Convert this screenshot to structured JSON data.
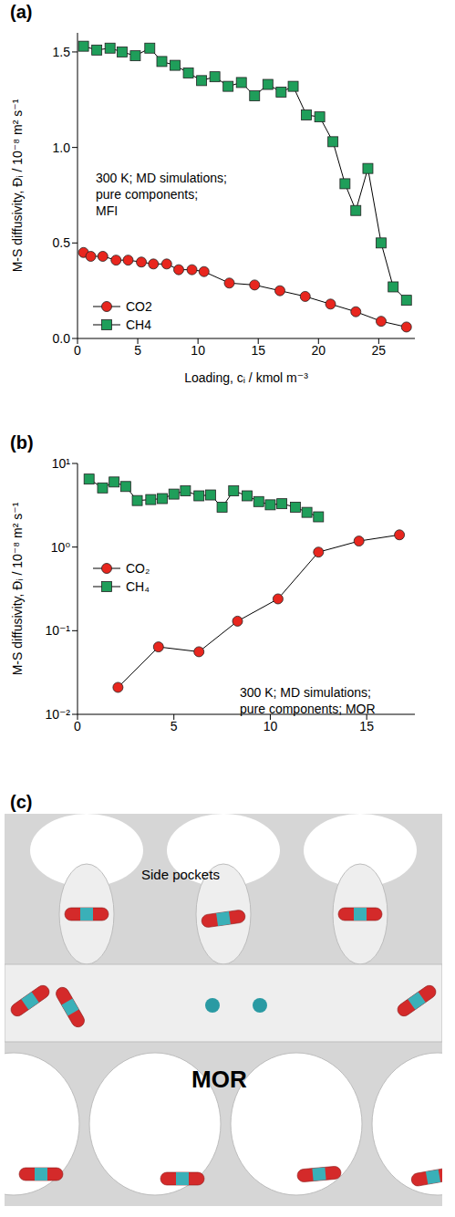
{
  "chart_data": [
    {
      "type": "line",
      "title": "(a)",
      "xlabel": "Loading, cᵢ / kmol m⁻³",
      "ylabel": "M-S diffusivity, Đᵢ / 10⁻⁸ m² s⁻¹",
      "annotations": [
        "300 K; MD simulations;",
        "pure components;",
        "MFI"
      ],
      "xlim": [
        0,
        28
      ],
      "xticks": [
        0,
        5,
        10,
        15,
        20,
        25
      ],
      "ylim": [
        0,
        1.6
      ],
      "yticks": [
        {
          "value": 0,
          "label": "0.0"
        },
        0.5,
        {
          "value": 1,
          "label": "1.0"
        },
        1.5
      ],
      "legend": "lower left",
      "grid": false,
      "series": [
        {
          "name": "CO2",
          "color": "#e8261e",
          "marker": "circle",
          "x": [
            0.5,
            1.1,
            2.1,
            3.2,
            4.2,
            5.3,
            6.3,
            7.4,
            8.4,
            9.5,
            10.5,
            12.6,
            14.7,
            16.8,
            18.9,
            21.0,
            23.1,
            25.2,
            27.3
          ],
          "values": [
            0.45,
            0.43,
            0.43,
            0.41,
            0.41,
            0.4,
            0.39,
            0.39,
            0.36,
            0.36,
            0.35,
            0.29,
            0.28,
            0.25,
            0.22,
            0.18,
            0.14,
            0.09,
            0.06
          ]
        },
        {
          "name": "CH4",
          "color": "#1f9e5a",
          "marker": "square",
          "x": [
            0.5,
            1.6,
            2.7,
            3.7,
            4.8,
            6.0,
            7.0,
            8.1,
            9.2,
            10.3,
            11.4,
            12.5,
            13.6,
            14.7,
            15.8,
            16.9,
            17.9,
            19.0,
            20.1,
            21.2,
            22.2,
            23.1,
            24.1,
            25.2,
            26.2,
            27.3
          ],
          "values": [
            1.53,
            1.51,
            1.52,
            1.5,
            1.48,
            1.52,
            1.45,
            1.43,
            1.39,
            1.35,
            1.37,
            1.32,
            1.34,
            1.27,
            1.33,
            1.29,
            1.32,
            1.17,
            1.16,
            1.03,
            0.81,
            0.67,
            0.89,
            0.5,
            0.27,
            0.2
          ]
        }
      ]
    },
    {
      "type": "line",
      "title": "(b)",
      "ylabel": "M-S diffusivity, Đᵢ / 10⁻⁸ m² s⁻¹",
      "annotations": [
        "300 K; MD simulations;",
        "pure components; MOR"
      ],
      "xlim": [
        0,
        17.5
      ],
      "xticks": [
        0,
        5,
        10,
        15
      ],
      "ylim": [
        0.01,
        10
      ],
      "yticks": [
        {
          "value": 0.01,
          "label": "10⁻²"
        },
        {
          "value": 0.1,
          "label": "10⁻¹"
        },
        {
          "value": 1,
          "label": "10⁰"
        },
        {
          "value": 10,
          "label": "10¹"
        }
      ],
      "log": "y",
      "legend": "center left",
      "grid": false,
      "series": [
        {
          "name": "CO₂",
          "color": "#e8261e",
          "marker": "circle",
          "x": [
            2.1,
            4.2,
            6.3,
            8.3,
            10.4,
            12.5,
            14.6,
            16.7
          ],
          "values": [
            0.021,
            0.064,
            0.056,
            0.13,
            0.24,
            0.87,
            1.18,
            1.4
          ]
        },
        {
          "name": "CH₄",
          "color": "#1f9e5a",
          "marker": "square",
          "x": [
            0.6,
            1.3,
            1.9,
            2.5,
            3.1,
            3.8,
            4.4,
            5.0,
            5.6,
            6.3,
            6.9,
            7.5,
            8.1,
            8.8,
            9.4,
            10.0,
            10.6,
            11.3,
            11.9,
            12.5
          ],
          "values": [
            6.5,
            5.1,
            6.0,
            5.3,
            3.6,
            3.7,
            3.8,
            4.3,
            4.7,
            4.1,
            4.2,
            3.0,
            4.7,
            4.1,
            3.5,
            3.2,
            3.3,
            3.0,
            2.6,
            2.3
          ]
        }
      ]
    }
  ],
  "diagram": {
    "panel": "(c)",
    "labels": {
      "pockets": "Side pockets",
      "framework": "MOR"
    }
  }
}
